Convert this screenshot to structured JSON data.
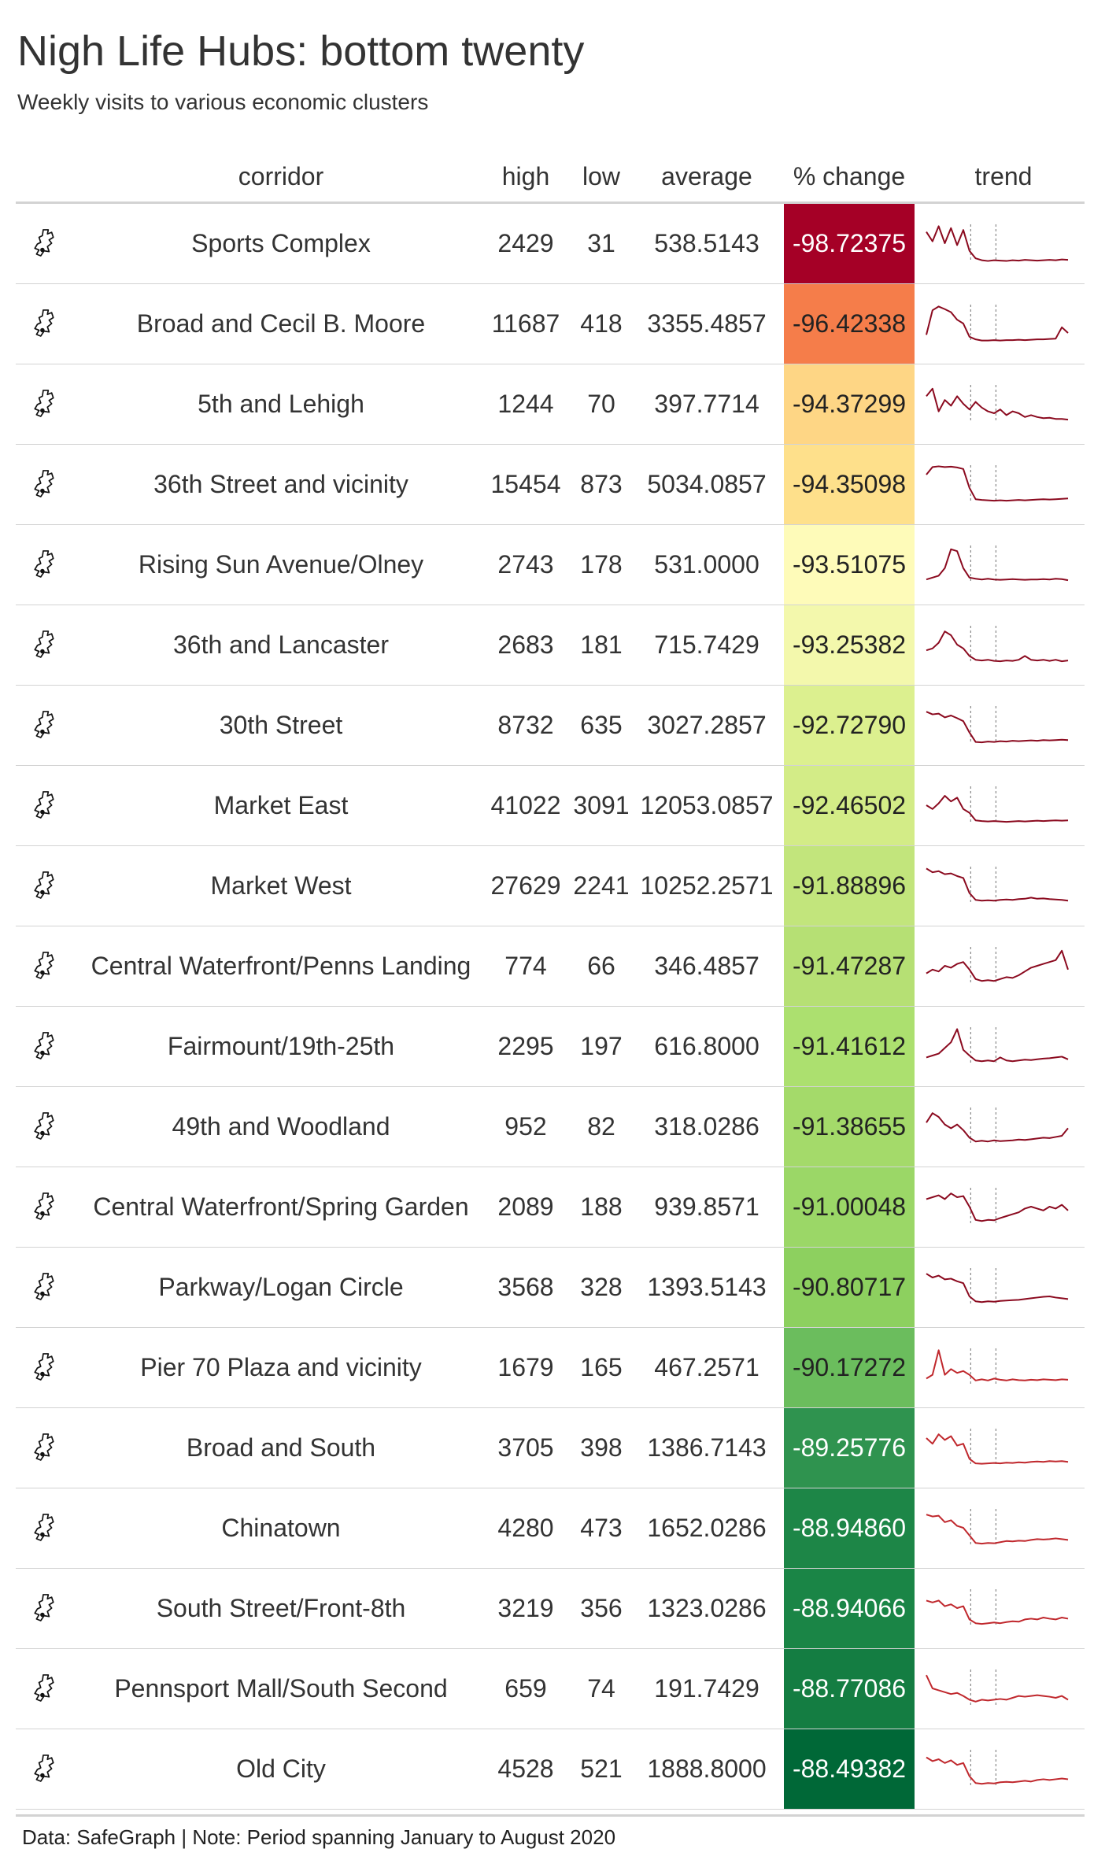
{
  "title": "Nigh Life Hubs: bottom twenty",
  "subtitle": "Weekly visits to various economic clusters",
  "footnote": "Data: SafeGraph | Note: Period spanning January to August 2020",
  "colors": {
    "trend_line": "#8b0a1f",
    "trend_line_recent": "#c0282d",
    "trend_marker": "#888888"
  },
  "chart_data": {
    "type": "table",
    "columns": [
      "corridor",
      "high",
      "low",
      "average",
      "% change",
      "trend"
    ],
    "rows": [
      {
        "icon": "philadelphia-map-icon",
        "corridor": "Sports Complex",
        "high": "2429",
        "low": "31",
        "average": "538.5143",
        "change": "-98.72375",
        "cell_color": "#a50026",
        "text_color": "#ffffff",
        "trend": [
          0.8,
          0.55,
          0.95,
          0.5,
          0.9,
          0.45,
          0.85,
          0.3,
          0.1,
          0.05,
          0.03,
          0.05,
          0.04,
          0.03,
          0.05,
          0.04,
          0.06,
          0.05,
          0.04,
          0.05,
          0.06,
          0.05,
          0.07,
          0.06
        ]
      },
      {
        "icon": "philadelphia-map-icon",
        "corridor": "Broad and Cecil B. Moore",
        "high": "11687",
        "low": "418",
        "average": "3355.4857",
        "change": "-96.42338",
        "cell_color": "#f57d4a",
        "text_color": "#222222",
        "trend": [
          0.2,
          0.85,
          0.95,
          0.88,
          0.8,
          0.6,
          0.5,
          0.15,
          0.08,
          0.05,
          0.05,
          0.06,
          0.05,
          0.06,
          0.06,
          0.07,
          0.06,
          0.07,
          0.08,
          0.08,
          0.09,
          0.1,
          0.4,
          0.25
        ]
      },
      {
        "icon": "philadelphia-map-icon",
        "corridor": "5th and Lehigh",
        "high": "1244",
        "low": "70",
        "average": "397.7714",
        "change": "-94.37299",
        "cell_color": "#fed685",
        "text_color": "#222222",
        "trend": [
          0.7,
          0.9,
          0.3,
          0.6,
          0.45,
          0.7,
          0.5,
          0.35,
          0.55,
          0.4,
          0.3,
          0.25,
          0.35,
          0.2,
          0.3,
          0.25,
          0.15,
          0.2,
          0.15,
          0.12,
          0.13,
          0.1,
          0.1,
          0.08
        ]
      },
      {
        "icon": "philadelphia-map-icon",
        "corridor": "36th Street and vicinity",
        "high": "15454",
        "low": "873",
        "average": "5034.0857",
        "change": "-94.35098",
        "cell_color": "#fee08b",
        "text_color": "#222222",
        "trend": [
          0.75,
          0.95,
          0.97,
          0.95,
          0.96,
          0.94,
          0.9,
          0.4,
          0.1,
          0.08,
          0.07,
          0.06,
          0.07,
          0.06,
          0.07,
          0.08,
          0.07,
          0.08,
          0.09,
          0.1,
          0.09,
          0.1,
          0.11,
          0.12
        ]
      },
      {
        "icon": "philadelphia-map-icon",
        "corridor": "Rising Sun Avenue/Olney",
        "high": "2743",
        "low": "178",
        "average": "531.0000",
        "change": "-93.51075",
        "cell_color": "#fefbb9",
        "text_color": "#222222",
        "trend": [
          0.1,
          0.15,
          0.2,
          0.4,
          0.9,
          0.85,
          0.4,
          0.15,
          0.12,
          0.1,
          0.12,
          0.1,
          0.09,
          0.1,
          0.11,
          0.1,
          0.09,
          0.1,
          0.1,
          0.11,
          0.1,
          0.12,
          0.11,
          0.08
        ]
      },
      {
        "icon": "philadelphia-map-icon",
        "corridor": "36th and Lancaster",
        "high": "2683",
        "low": "181",
        "average": "715.7429",
        "change": "-93.25382",
        "cell_color": "#f3f8ac",
        "text_color": "#222222",
        "trend": [
          0.35,
          0.4,
          0.55,
          0.85,
          0.75,
          0.5,
          0.4,
          0.2,
          0.1,
          0.08,
          0.1,
          0.07,
          0.06,
          0.08,
          0.07,
          0.1,
          0.2,
          0.1,
          0.08,
          0.1,
          0.07,
          0.1,
          0.06,
          0.08
        ]
      },
      {
        "icon": "philadelphia-map-icon",
        "corridor": "30th Street",
        "high": "8732",
        "low": "635",
        "average": "3027.2857",
        "change": "-92.72790",
        "cell_color": "#dcf08f",
        "text_color": "#222222",
        "trend": [
          0.85,
          0.78,
          0.8,
          0.7,
          0.75,
          0.68,
          0.6,
          0.3,
          0.05,
          0.04,
          0.06,
          0.05,
          0.07,
          0.06,
          0.08,
          0.07,
          0.08,
          0.09,
          0.08,
          0.1,
          0.09,
          0.1,
          0.11,
          0.1
        ]
      },
      {
        "icon": "philadelphia-map-icon",
        "corridor": "Market East",
        "high": "41022",
        "low": "3091",
        "average": "12053.0857",
        "change": "-92.46502",
        "cell_color": "#d3ec87",
        "text_color": "#222222",
        "trend": [
          0.5,
          0.4,
          0.55,
          0.75,
          0.6,
          0.7,
          0.4,
          0.3,
          0.1,
          0.08,
          0.07,
          0.08,
          0.07,
          0.06,
          0.07,
          0.08,
          0.07,
          0.08,
          0.09,
          0.08,
          0.09,
          0.1,
          0.09,
          0.1
        ]
      },
      {
        "icon": "philadelphia-map-icon",
        "corridor": "Market West",
        "high": "27629",
        "low": "2241",
        "average": "10252.2571",
        "change": "-91.88896",
        "cell_color": "#c2e57c",
        "text_color": "#222222",
        "trend": [
          0.95,
          0.85,
          0.88,
          0.8,
          0.82,
          0.75,
          0.7,
          0.3,
          0.12,
          0.1,
          0.11,
          0.1,
          0.12,
          0.13,
          0.12,
          0.14,
          0.15,
          0.18,
          0.15,
          0.16,
          0.14,
          0.13,
          0.12,
          0.1
        ]
      },
      {
        "icon": "philadelphia-map-icon",
        "corridor": "Central Waterfront/Penns Landing",
        "high": "774",
        "low": "66",
        "average": "346.4857",
        "change": "-91.47287",
        "cell_color": "#b6e074",
        "text_color": "#222222",
        "trend": [
          0.3,
          0.4,
          0.35,
          0.5,
          0.45,
          0.55,
          0.6,
          0.4,
          0.15,
          0.1,
          0.12,
          0.1,
          0.15,
          0.2,
          0.18,
          0.25,
          0.35,
          0.45,
          0.5,
          0.55,
          0.6,
          0.65,
          0.9,
          0.4
        ]
      },
      {
        "icon": "philadelphia-map-icon",
        "corridor": "Fairmount/19th-25th",
        "high": "2295",
        "low": "197",
        "average": "616.8000",
        "change": "-91.41612",
        "cell_color": "#ace06f",
        "text_color": "#222222",
        "trend": [
          0.2,
          0.25,
          0.3,
          0.45,
          0.6,
          0.95,
          0.4,
          0.25,
          0.12,
          0.1,
          0.12,
          0.1,
          0.2,
          0.12,
          0.1,
          0.12,
          0.14,
          0.13,
          0.15,
          0.17,
          0.18,
          0.2,
          0.22,
          0.15
        ]
      },
      {
        "icon": "philadelphia-map-icon",
        "corridor": "49th and Woodland",
        "high": "952",
        "low": "82",
        "average": "318.0286",
        "change": "-91.38655",
        "cell_color": "#a4da6a",
        "text_color": "#222222",
        "trend": [
          0.6,
          0.85,
          0.75,
          0.55,
          0.45,
          0.55,
          0.4,
          0.2,
          0.1,
          0.12,
          0.1,
          0.13,
          0.11,
          0.12,
          0.13,
          0.15,
          0.14,
          0.16,
          0.18,
          0.2,
          0.19,
          0.22,
          0.25,
          0.45
        ]
      },
      {
        "icon": "philadelphia-map-icon",
        "corridor": "Central Waterfront/Spring Garden",
        "high": "2089",
        "low": "188",
        "average": "939.8571",
        "change": "-91.00048",
        "cell_color": "#9bd767",
        "text_color": "#222222",
        "trend": [
          0.7,
          0.75,
          0.8,
          0.7,
          0.85,
          0.75,
          0.78,
          0.5,
          0.15,
          0.12,
          0.15,
          0.14,
          0.2,
          0.25,
          0.3,
          0.35,
          0.45,
          0.5,
          0.45,
          0.4,
          0.5,
          0.45,
          0.55,
          0.4
        ]
      },
      {
        "icon": "philadelphia-map-icon",
        "corridor": "Parkway/Logan Circle",
        "high": "3568",
        "low": "328",
        "average": "1393.5143",
        "change": "-90.80717",
        "cell_color": "#8dd05f",
        "text_color": "#222222",
        "trend": [
          0.85,
          0.75,
          0.8,
          0.7,
          0.72,
          0.65,
          0.6,
          0.25,
          0.12,
          0.1,
          0.12,
          0.11,
          0.13,
          0.14,
          0.15,
          0.16,
          0.18,
          0.2,
          0.22,
          0.24,
          0.25,
          0.22,
          0.2,
          0.18
        ]
      },
      {
        "icon": "philadelphia-map-icon",
        "corridor": "Pier 70 Plaza and vicinity",
        "high": "1679",
        "low": "165",
        "average": "467.2571",
        "change": "-90.17272",
        "cell_color": "#6bbd5d",
        "text_color": "#222222",
        "trend": [
          0.2,
          0.3,
          0.95,
          0.3,
          0.45,
          0.35,
          0.4,
          0.3,
          0.15,
          0.18,
          0.15,
          0.2,
          0.17,
          0.15,
          0.18,
          0.16,
          0.15,
          0.17,
          0.16,
          0.18,
          0.17,
          0.16,
          0.18,
          0.17
        ]
      },
      {
        "icon": "philadelphia-map-icon",
        "corridor": "Broad and South",
        "high": "3705",
        "low": "398",
        "average": "1386.7143",
        "change": "-89.25776",
        "cell_color": "#2f934f",
        "text_color": "#ffffff",
        "trend": [
          0.75,
          0.6,
          0.85,
          0.7,
          0.8,
          0.55,
          0.6,
          0.2,
          0.08,
          0.07,
          0.08,
          0.09,
          0.08,
          0.1,
          0.09,
          0.11,
          0.1,
          0.12,
          0.13,
          0.12,
          0.14,
          0.13,
          0.14,
          0.12
        ]
      },
      {
        "icon": "philadelphia-map-icon",
        "corridor": "Chinatown",
        "high": "4280",
        "low": "473",
        "average": "1652.0286",
        "change": "-88.94860",
        "cell_color": "#1d8647",
        "text_color": "#ffffff",
        "trend": [
          0.85,
          0.8,
          0.82,
          0.65,
          0.7,
          0.55,
          0.5,
          0.3,
          0.1,
          0.08,
          0.1,
          0.09,
          0.12,
          0.15,
          0.14,
          0.16,
          0.15,
          0.18,
          0.2,
          0.19,
          0.2,
          0.22,
          0.2,
          0.18
        ]
      },
      {
        "icon": "philadelphia-map-icon",
        "corridor": "South Street/Front-8th",
        "high": "3219",
        "low": "356",
        "average": "1323.0286",
        "change": "-88.94066",
        "cell_color": "#1a8546",
        "text_color": "#ffffff",
        "trend": [
          0.7,
          0.65,
          0.7,
          0.55,
          0.6,
          0.5,
          0.55,
          0.2,
          0.1,
          0.08,
          0.1,
          0.12,
          0.1,
          0.13,
          0.15,
          0.14,
          0.2,
          0.22,
          0.2,
          0.25,
          0.22,
          0.2,
          0.25,
          0.22
        ]
      },
      {
        "icon": "philadelphia-map-icon",
        "corridor": "Pennsport Mall/South Second",
        "high": "659",
        "low": "74",
        "average": "191.7429",
        "change": "-88.77086",
        "cell_color": "#147d42",
        "text_color": "#ffffff",
        "trend": [
          0.85,
          0.5,
          0.45,
          0.4,
          0.35,
          0.38,
          0.3,
          0.2,
          0.15,
          0.2,
          0.18,
          0.2,
          0.22,
          0.2,
          0.25,
          0.3,
          0.28,
          0.3,
          0.32,
          0.3,
          0.28,
          0.25,
          0.3,
          0.2
        ]
      },
      {
        "icon": "philadelphia-map-icon",
        "corridor": "Old City",
        "high": "4528",
        "low": "521",
        "average": "1888.8000",
        "change": "-88.49382",
        "cell_color": "#006837",
        "text_color": "#ffffff",
        "trend": [
          0.8,
          0.7,
          0.75,
          0.65,
          0.72,
          0.6,
          0.65,
          0.3,
          0.12,
          0.1,
          0.12,
          0.11,
          0.14,
          0.15,
          0.14,
          0.16,
          0.18,
          0.16,
          0.2,
          0.22,
          0.2,
          0.22,
          0.24,
          0.22
        ]
      }
    ]
  }
}
